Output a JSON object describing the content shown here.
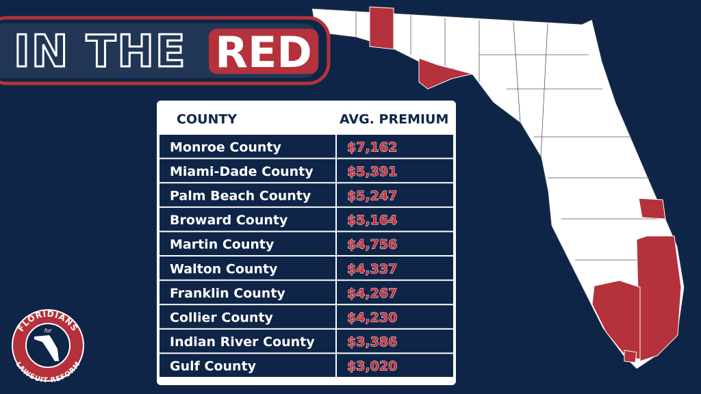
{
  "title": {
    "lead": "IN THE",
    "highlight": "RED"
  },
  "table": {
    "headers": [
      "COUNTY",
      "AVG. PREMIUM"
    ],
    "rows": [
      [
        "Monroe County",
        "$7,162"
      ],
      [
        "Miami-Dade County",
        "$5,391"
      ],
      [
        "Palm Beach County",
        "$5,247"
      ],
      [
        "Broward County",
        "$5,164"
      ],
      [
        "Martin County",
        "$4,756"
      ],
      [
        "Walton County",
        "$4,337"
      ],
      [
        "Franklin County",
        "$4,267"
      ],
      [
        "Collier County",
        "$4,230"
      ],
      [
        "Indian River County",
        "$3,386"
      ],
      [
        "Gulf County",
        "$3,020"
      ]
    ]
  },
  "logo": {
    "top": "FLORIDIANS",
    "middle": "for",
    "bottom": "LAWSUIT REFORM"
  }
}
